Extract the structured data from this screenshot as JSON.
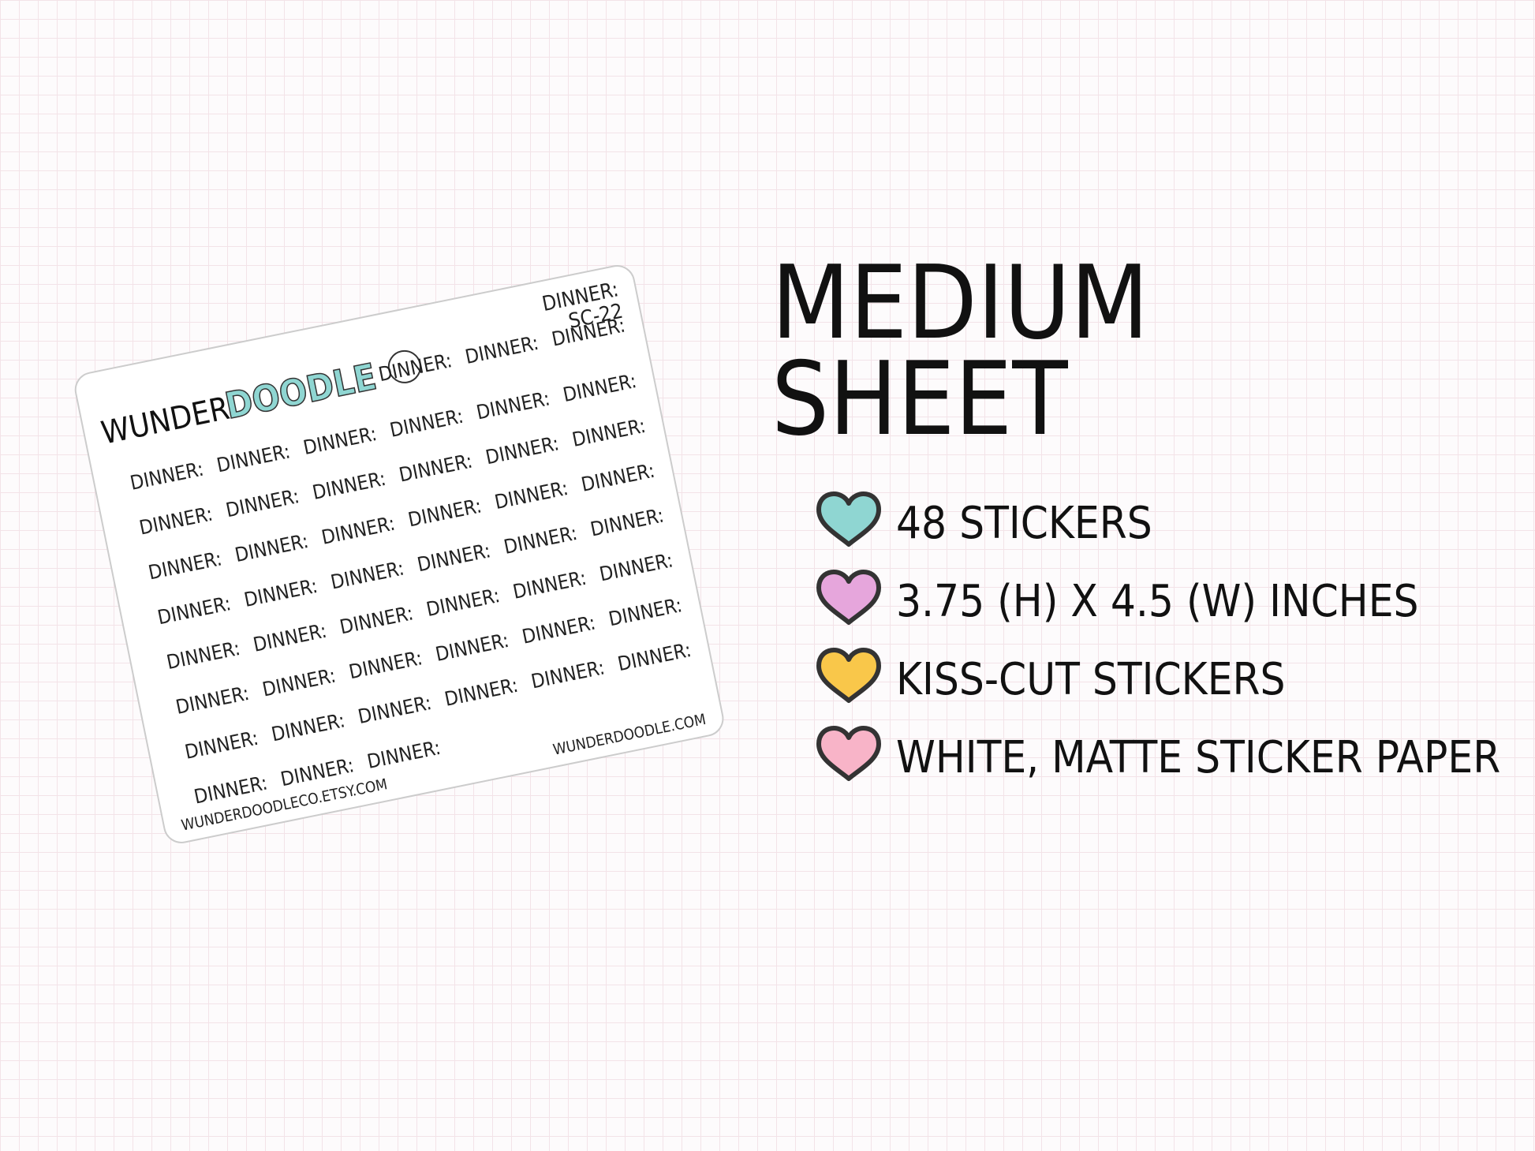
{
  "sheet": {
    "brand": {
      "part1": "WUNDER",
      "part2": "DOODLE"
    },
    "header": {
      "line1": "DINNER:",
      "line2": "SC-22"
    },
    "stickers": [
      "DINNER:",
      "DINNER:",
      "DINNER:",
      "DINNER:",
      "DINNER:",
      "DINNER:",
      "DINNER:",
      "DINNER:",
      "DINNER:",
      "DINNER:",
      "DINNER:",
      "DINNER:",
      "DINNER:",
      "DINNER:",
      "DINNER:",
      "DINNER:",
      "DINNER:",
      "DINNER:",
      "DINNER:",
      "DINNER:",
      "DINNER:",
      "DINNER:",
      "DINNER:",
      "DINNER:",
      "DINNER:",
      "DINNER:",
      "DINNER:",
      "DINNER:",
      "DINNER:",
      "DINNER:",
      "DINNER:",
      "DINNER:",
      "DINNER:",
      "DINNER:",
      "DINNER:",
      "DINNER:",
      "DINNER:",
      "DINNER:",
      "DINNER:",
      "DINNER:",
      "DINNER:",
      "DINNER:",
      "DINNER:",
      "DINNER:",
      "DINNER:",
      "DINNER:",
      "DINNER:",
      "DINNER:"
    ],
    "footer_left": "WUNDERDOODLECO.ETSY.COM",
    "footer_right": "WUNDERDOODLE.COM"
  },
  "title": {
    "line1": "MEDIUM",
    "line2": "SHEET"
  },
  "features": [
    {
      "text": "48 STICKERS",
      "color": "#8fd6d2"
    },
    {
      "text": "3.75 (H) X 4.5 (W) INCHES",
      "color": "#e6a6dc"
    },
    {
      "text": "KISS-CUT STICKERS",
      "color": "#f9c74a"
    },
    {
      "text": "WHITE, MATTE STICKER PAPER",
      "color": "#f8b4c8"
    }
  ]
}
